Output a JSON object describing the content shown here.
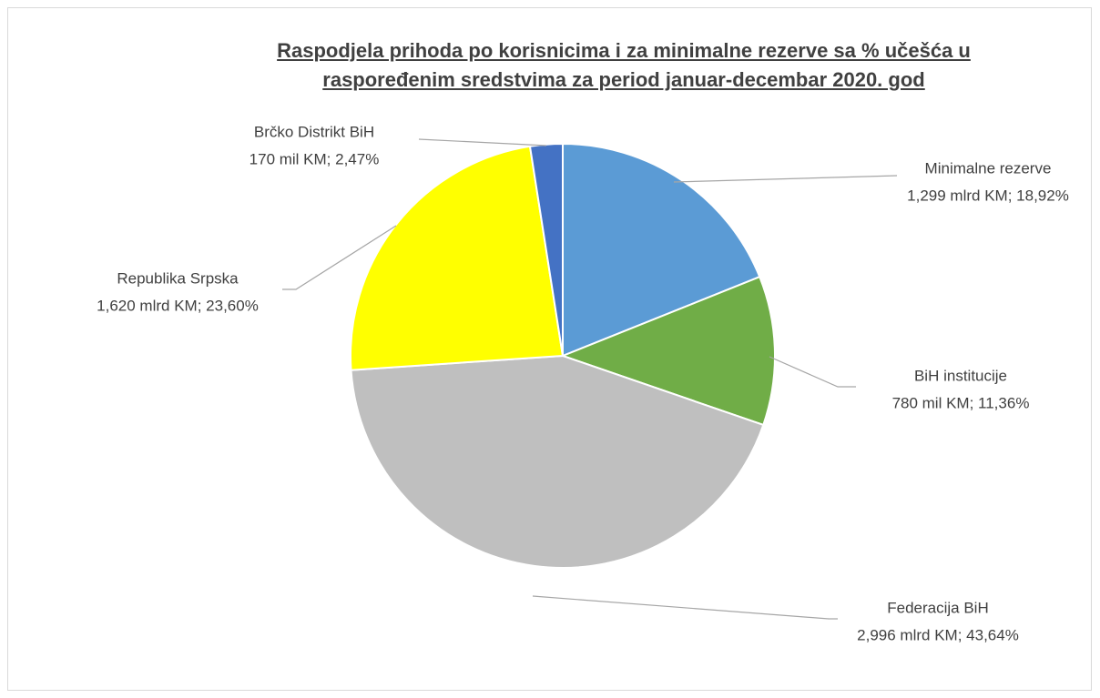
{
  "chart_data": {
    "type": "pie",
    "title": "Raspodjela prihoda po korisnicima i za minimalne rezerve sa % učešća u raspoređenim sredstvima za period januar-decembar 2020. god",
    "categories": [
      "Minimalne rezerve",
      "BiH institucije",
      "Federacija BiH",
      "Republika Srpska",
      "Brčko Distrikt BiH"
    ],
    "values": [
      18.92,
      11.36,
      43.64,
      23.6,
      2.47
    ],
    "value_labels": [
      "1,299 mlrd KM; 18,92%",
      "780 mil KM; 11,36%",
      "2,996 mlrd KM; 43,64%",
      "1,620 mlrd KM; 23,60%",
      "170 mil KM; 2,47%"
    ],
    "colors": [
      "#5b9bd5",
      "#70ad47",
      "#bfbfbf",
      "#ffff00",
      "#4472c4"
    ]
  }
}
